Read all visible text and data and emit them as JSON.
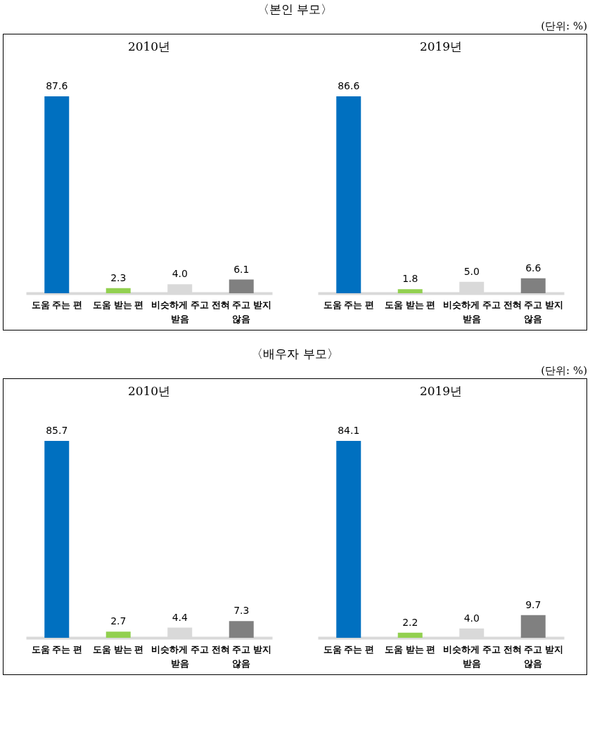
{
  "chart_data": [
    {
      "type": "bar",
      "title": "2010년",
      "annotations": [
        "〈본인 부모〉",
        "(단위: %)"
      ],
      "categories": [
        "도움 주는 편",
        "도움 받는 편",
        "비슷하게 주고 받음",
        "전혀 주고 받지 않음"
      ],
      "values": [
        87.6,
        2.3,
        4.0,
        6.1
      ],
      "colors": [
        "#0070c0",
        "#92d050",
        "#d9d9d9",
        "#808080"
      ],
      "value_labels": [
        "87.6",
        "2.3",
        "4.0",
        "6.1"
      ]
    },
    {
      "type": "bar",
      "title": "2019년",
      "categories": [
        "도움 주는 편",
        "도움 받는 편",
        "비슷하게 주고 받음",
        "전혀 주고 받지 않음"
      ],
      "values": [
        86.6,
        1.8,
        5.0,
        6.6
      ],
      "colors": [
        "#0070c0",
        "#92d050",
        "#d9d9d9",
        "#808080"
      ],
      "value_labels": [
        "86.6",
        "1.8",
        "5.0",
        "6.6"
      ]
    },
    {
      "type": "bar",
      "title": "2010년",
      "annotations": [
        "〈배우자 부모〉",
        "(단위: %)"
      ],
      "categories": [
        "도움 주는 편",
        "도움 받는 편",
        "비슷하게 주고 받음",
        "전혀 주고 받지 않음"
      ],
      "values": [
        85.7,
        2.7,
        4.4,
        7.3
      ],
      "colors": [
        "#0070c0",
        "#92d050",
        "#d9d9d9",
        "#808080"
      ],
      "value_labels": [
        "85.7",
        "2.7",
        "4.4",
        "7.3"
      ]
    },
    {
      "type": "bar",
      "title": "2019년",
      "categories": [
        "도움 주는 편",
        "도움 받는 편",
        "비슷하게 주고 받음",
        "전혀 주고 받지 않음"
      ],
      "values": [
        84.1,
        2.2,
        4.0,
        9.7
      ],
      "colors": [
        "#0070c0",
        "#92d050",
        "#d9d9d9",
        "#808080"
      ],
      "value_labels": [
        "84.1",
        "2.2",
        "4.0",
        "9.7"
      ]
    }
  ]
}
